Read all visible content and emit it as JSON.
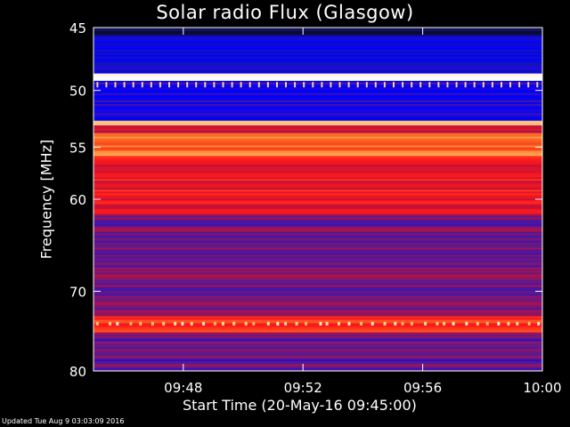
{
  "chart_data": {
    "type": "heatmap",
    "title": "Solar radio Flux (Glasgow)",
    "ylabel": "Frequency [MHz]",
    "xlabel": "Start Time (20-May-16 09:45:00)",
    "y_scale": "log",
    "y_ticks": [
      45,
      50,
      55,
      60,
      70,
      80
    ],
    "ylim": [
      80,
      45
    ],
    "x_ticks": [
      "09:48",
      "09:52",
      "09:56",
      "10:00"
    ],
    "x_tick_minutes": [
      3,
      7,
      11,
      15
    ],
    "xlim_minutes": [
      0,
      15
    ],
    "colormap": [
      "#0a0a2a",
      "#1a1aa0",
      "#0000ff",
      "#5a1a90",
      "#c0103a",
      "#ff1a1a",
      "#ff8a2a",
      "#ffe0a0",
      "#ffffff"
    ],
    "bands_mhz": [
      {
        "from": 45.0,
        "to": 45.6,
        "level": 0.05
      },
      {
        "from": 45.6,
        "to": 48.6,
        "level": 0.22
      },
      {
        "from": 48.6,
        "to": 49.2,
        "level": 1.0
      },
      {
        "from": 49.2,
        "to": 52.6,
        "level": 0.28
      },
      {
        "from": 52.6,
        "to": 53.0,
        "level": 0.9
      },
      {
        "from": 53.0,
        "to": 53.7,
        "level": 0.5
      },
      {
        "from": 53.7,
        "to": 55.8,
        "level": 0.72
      },
      {
        "from": 55.8,
        "to": 61.5,
        "level": 0.58
      },
      {
        "from": 61.5,
        "to": 73.0,
        "level": 0.42
      },
      {
        "from": 73.0,
        "to": 75.0,
        "level": 0.62
      },
      {
        "from": 75.0,
        "to": 80.0,
        "level": 0.38
      }
    ]
  },
  "footer": {
    "updated": "Updated Tue Aug  9 03:03:09 2016"
  }
}
